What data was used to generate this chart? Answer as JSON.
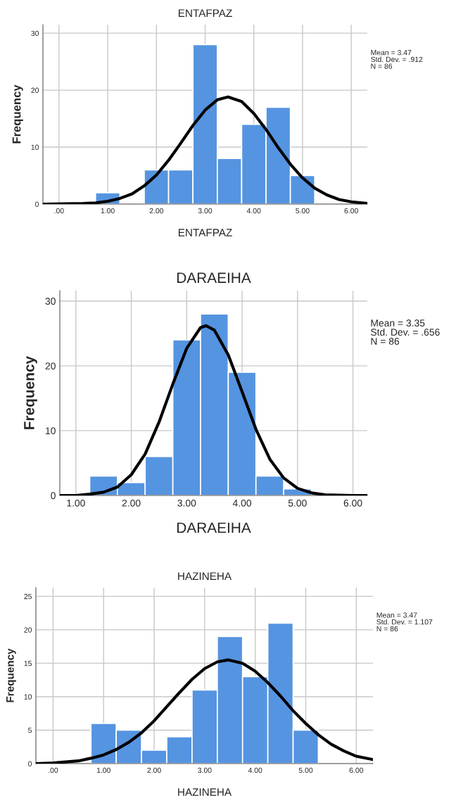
{
  "chart_data": [
    {
      "type": "histogram",
      "title": "ENTAFPAZ",
      "xlabel": "ENTAFPAZ",
      "ylabel": "Frequency",
      "bins": [
        0.75,
        1.25,
        1.75,
        2.25,
        2.75,
        3.25,
        3.75,
        4.25,
        4.75,
        5.25
      ],
      "values": [
        2,
        0,
        6,
        6,
        28,
        8,
        14,
        17,
        5
      ],
      "color": "#5594e0",
      "series": [
        {
          "type": "line",
          "color": "#000000",
          "x": [
            -0.33,
            0.5,
            0.75,
            1.0,
            1.25,
            1.5,
            1.75,
            2.0,
            2.25,
            2.5,
            2.75,
            3.0,
            3.25,
            3.47,
            3.75,
            4.0,
            4.25,
            4.5,
            4.75,
            5.0,
            5.25,
            5.5,
            5.75,
            6.0,
            6.33
          ],
          "values": [
            0.0,
            0.1,
            0.2,
            0.5,
            1.0,
            1.8,
            3.2,
            5.1,
            7.7,
            10.7,
            13.8,
            16.5,
            18.3,
            18.8,
            18.0,
            15.9,
            13.1,
            9.9,
            7.0,
            4.6,
            2.8,
            1.6,
            0.8,
            0.4,
            0.1
          ]
        }
      ],
      "xlim": [
        -0.33,
        6.33
      ],
      "ylim": [
        0,
        31.5
      ],
      "xticks": [
        {
          "value": 0,
          "label": ".00"
        },
        {
          "value": 1,
          "label": "1.00"
        },
        {
          "value": 2,
          "label": "2.00"
        },
        {
          "value": 3,
          "label": "3.00"
        },
        {
          "value": 4,
          "label": "4.00"
        },
        {
          "value": 5,
          "label": "5.00"
        },
        {
          "value": 6,
          "label": "6.00"
        }
      ],
      "yticks": [
        0,
        10,
        20,
        30
      ],
      "grid": true,
      "annotations": [
        "Mean = 3.47",
        "Std. Dev. = .912",
        "N = 86"
      ]
    },
    {
      "type": "histogram",
      "title": "DARAEIHA",
      "xlabel": "DARAEIHA",
      "ylabel": "Frequency",
      "bins": [
        1.25,
        1.75,
        2.25,
        2.75,
        3.25,
        3.75,
        4.25,
        4.75,
        5.25
      ],
      "values": [
        3,
        2,
        6,
        24,
        28,
        19,
        3,
        1
      ],
      "color": "#5594e0",
      "series": [
        {
          "type": "line",
          "color": "#000000",
          "x": [
            0.71,
            1.0,
            1.25,
            1.5,
            1.75,
            2.0,
            2.25,
            2.5,
            2.75,
            3.0,
            3.25,
            3.35,
            3.5,
            3.75,
            4.0,
            4.25,
            4.5,
            4.75,
            5.0,
            5.25,
            5.5,
            6.0,
            6.26
          ],
          "values": [
            0.0,
            0.0,
            0.2,
            0.5,
            1.3,
            3.2,
            6.4,
            11.3,
            17.2,
            22.7,
            25.9,
            26.2,
            25.5,
            21.7,
            16.0,
            10.2,
            5.6,
            2.7,
            1.1,
            0.4,
            0.1,
            0.0,
            0.0
          ]
        }
      ],
      "xlim": [
        0.71,
        6.26
      ],
      "ylim": [
        0,
        31.6
      ],
      "xticks": [
        {
          "value": 1,
          "label": "1.00"
        },
        {
          "value": 2,
          "label": "2.00"
        },
        {
          "value": 3,
          "label": "3.00"
        },
        {
          "value": 4,
          "label": "4.00"
        },
        {
          "value": 5,
          "label": "5.00"
        },
        {
          "value": 6,
          "label": "6.00"
        }
      ],
      "yticks": [
        0,
        10,
        20,
        30
      ],
      "grid": true,
      "annotations": [
        "Mean = 3.35",
        "Std. Dev. = .656",
        "N = 86"
      ]
    },
    {
      "type": "histogram",
      "title": "HAZINEHA",
      "xlabel": "HAZINEHA",
      "ylabel": "Frequency",
      "bins": [
        0.75,
        1.25,
        1.75,
        2.25,
        2.75,
        3.25,
        3.75,
        4.25,
        4.75,
        5.25
      ],
      "values": [
        6,
        5,
        2,
        4,
        11,
        19,
        13,
        21,
        5
      ],
      "color": "#5594e0",
      "series": [
        {
          "type": "line",
          "color": "#000000",
          "x": [
            -0.34,
            0.0,
            0.5,
            0.75,
            1.0,
            1.25,
            1.5,
            1.75,
            2.0,
            2.25,
            2.5,
            2.75,
            3.0,
            3.25,
            3.47,
            3.75,
            4.0,
            4.25,
            4.5,
            4.75,
            5.0,
            5.25,
            5.5,
            5.75,
            6.0,
            6.33
          ],
          "values": [
            0.0,
            0.1,
            0.4,
            0.8,
            1.3,
            2.1,
            3.2,
            4.6,
            6.4,
            8.5,
            10.6,
            12.6,
            14.2,
            15.2,
            15.5,
            15.0,
            13.8,
            12.1,
            10.1,
            7.9,
            6.0,
            4.3,
            2.9,
            1.9,
            1.1,
            0.6
          ]
        }
      ],
      "xlim": [
        -0.34,
        6.33
      ],
      "ylim": [
        0,
        26.3
      ],
      "xticks": [
        {
          "value": 0,
          "label": ".00"
        },
        {
          "value": 1,
          "label": "1.00"
        },
        {
          "value": 2,
          "label": "2.00"
        },
        {
          "value": 3,
          "label": "3.00"
        },
        {
          "value": 4,
          "label": "4.00"
        },
        {
          "value": 5,
          "label": "5.00"
        },
        {
          "value": 6,
          "label": "6.00"
        }
      ],
      "yticks": [
        0,
        5,
        10,
        15,
        20,
        25
      ],
      "grid": true,
      "annotations": [
        "Mean = 3.47",
        "Std. Dev. = 1.107",
        "N = 86"
      ]
    }
  ]
}
